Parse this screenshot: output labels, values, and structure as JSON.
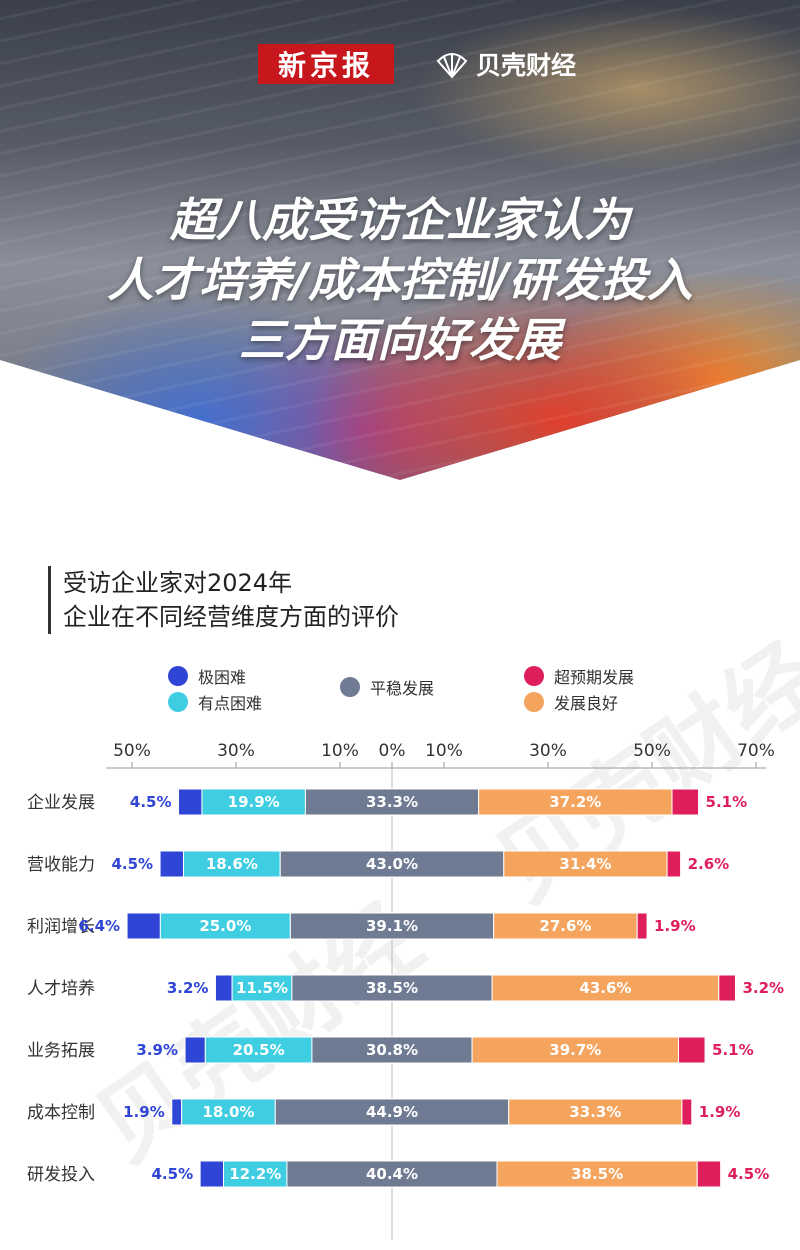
{
  "header": {
    "logo_xjb": "新京报",
    "logo_bk": "贝壳财经",
    "headline": [
      "超八成受访企业家认为",
      "人才培养/成本控制/研发投入",
      "三方面向好发展"
    ]
  },
  "chart_title": [
    "受访企业家对2024年",
    "企业在不同经营维度方面的评价"
  ],
  "watermark": "贝壳财经",
  "colors": {
    "very_difficult": "#2f45d6",
    "somewhat_difficult": "#3fcde2",
    "stable": "#6f7a93",
    "good": "#f5a45e",
    "exceed": "#df1f5b"
  },
  "chart_data": {
    "type": "bar",
    "orientation": "horizontal-diverging",
    "categories": [
      "企业发展",
      "营收能力",
      "利润增长",
      "人才培养",
      "业务拓展",
      "成本控制",
      "研发投入"
    ],
    "series": [
      {
        "name": "极困难",
        "color": "#2f45d6",
        "side": "negative",
        "values": [
          4.5,
          4.5,
          6.4,
          3.2,
          3.9,
          1.9,
          4.5
        ]
      },
      {
        "name": "有点困难",
        "color": "#3fcde2",
        "side": "negative",
        "values": [
          19.9,
          18.6,
          25.0,
          11.5,
          20.5,
          18.0,
          12.2
        ]
      },
      {
        "name": "平稳发展",
        "color": "#6f7a93",
        "side": "center",
        "values": [
          33.3,
          43.0,
          39.1,
          38.5,
          30.8,
          44.9,
          40.4
        ]
      },
      {
        "name": "发展良好",
        "color": "#f5a45e",
        "side": "positive",
        "values": [
          37.2,
          31.4,
          27.6,
          43.6,
          39.7,
          33.3,
          38.5
        ]
      },
      {
        "name": "超预期发展",
        "color": "#df1f5b",
        "side": "positive",
        "values": [
          5.1,
          2.6,
          1.9,
          3.2,
          5.1,
          1.9,
          4.5
        ]
      }
    ],
    "data_labels": [
      [
        "4.5%",
        "19.9%",
        "33.3%",
        "37.2%",
        "5.1%"
      ],
      [
        "4.5%",
        "18.6%",
        "43.0%",
        "31.4%",
        "2.6%"
      ],
      [
        "6.4%",
        "25.0%",
        "39.1%",
        "27.6%",
        "1.9%"
      ],
      [
        "3.2%",
        "11.5%",
        "38.5%",
        "43.6%",
        "3.2%"
      ],
      [
        "3.9%",
        "20.5%",
        "30.8%",
        "39.7%",
        "5.1%"
      ],
      [
        "1.9%",
        "18.0%",
        "44.9%",
        "33.3%",
        "1.9%"
      ],
      [
        "4.5%",
        "12.2%",
        "40.4%",
        "38.5%",
        "4.5%"
      ]
    ],
    "x_ticks": [
      "50%",
      "30%",
      "10%",
      "0%",
      "10%",
      "30%",
      "50%",
      "70%"
    ],
    "x_tick_values": [
      -50,
      -30,
      -10,
      0,
      10,
      30,
      50,
      70
    ],
    "xlim": [
      -55,
      72
    ],
    "legend": {
      "placement": "top",
      "items": [
        {
          "label": "极困难",
          "color": "#2f45d6"
        },
        {
          "label": "有点困难",
          "color": "#3fcde2"
        },
        {
          "label": "平稳发展",
          "color": "#6f7a93"
        },
        {
          "label": "超预期发展",
          "color": "#df1f5b"
        },
        {
          "label": "发展良好",
          "color": "#f5a45e"
        }
      ]
    },
    "grid": false
  }
}
